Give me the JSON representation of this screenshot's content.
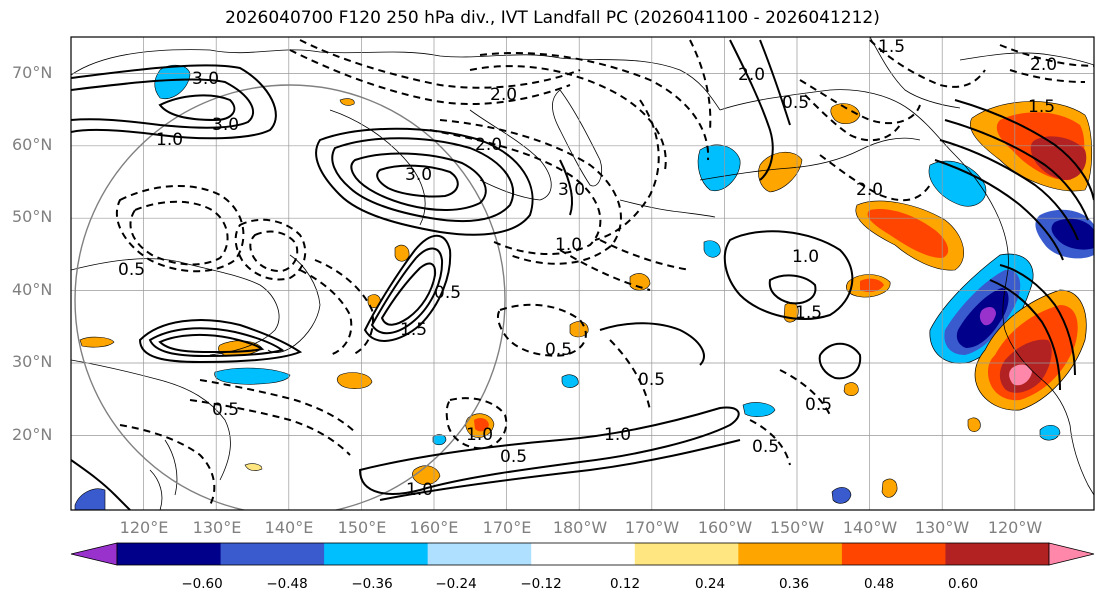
{
  "title": "2026040700 F120 250 hPa div., IVT Landfall PC (2026041100 - 2026041212)",
  "latitude_labels": [
    "70°N",
    "60°N",
    "50°N",
    "40°N",
    "30°N",
    "20°N"
  ],
  "latitude_values": [
    70,
    60,
    50,
    40,
    30,
    20
  ],
  "longitude_labels": [
    "120°E",
    "130°E",
    "140°E",
    "150°E",
    "160°E",
    "170°E",
    "180°W",
    "170°W",
    "160°W",
    "150°W",
    "140°W",
    "130°W",
    "120°W"
  ],
  "longitude_values": [
    120,
    130,
    140,
    150,
    160,
    170,
    180,
    190,
    200,
    210,
    220,
    230,
    240
  ],
  "map_extent": {
    "lon_min": 110,
    "lon_max": 251,
    "lat_min": 10,
    "lat_max": 75
  },
  "colorbar": {
    "tick_labels": [
      "−0.60",
      "−0.48",
      "−0.36",
      "−0.24",
      "−0.12",
      "0.12",
      "0.24",
      "0.36",
      "0.48",
      "0.60"
    ],
    "colors": [
      "#9932CC",
      "#00008B",
      "#3A5BCD",
      "#00BFFF",
      "#B0E0FF",
      "#FFFFFF",
      "#FFE680",
      "#FFA500",
      "#FF4500",
      "#B22222",
      "#FF88AA"
    ]
  },
  "contour_labels": [
    "3.0",
    "1.0",
    "2.0",
    "0.5",
    "2.0",
    "0.5",
    "3.0",
    "3.0",
    "1.5",
    "2.0",
    "2.0",
    "3.0",
    "0.5",
    "1.0",
    "1.5",
    "0.5",
    "1.0",
    "1.0",
    "0.5",
    "0.5",
    "0.5",
    "2.0",
    "1.0",
    "0.5",
    "1.0",
    "1.5",
    "1.5",
    "0.5"
  ],
  "colors": {
    "land_line": "#000000",
    "grid": "#999999",
    "circle": "#808080",
    "label": "#808080"
  }
}
